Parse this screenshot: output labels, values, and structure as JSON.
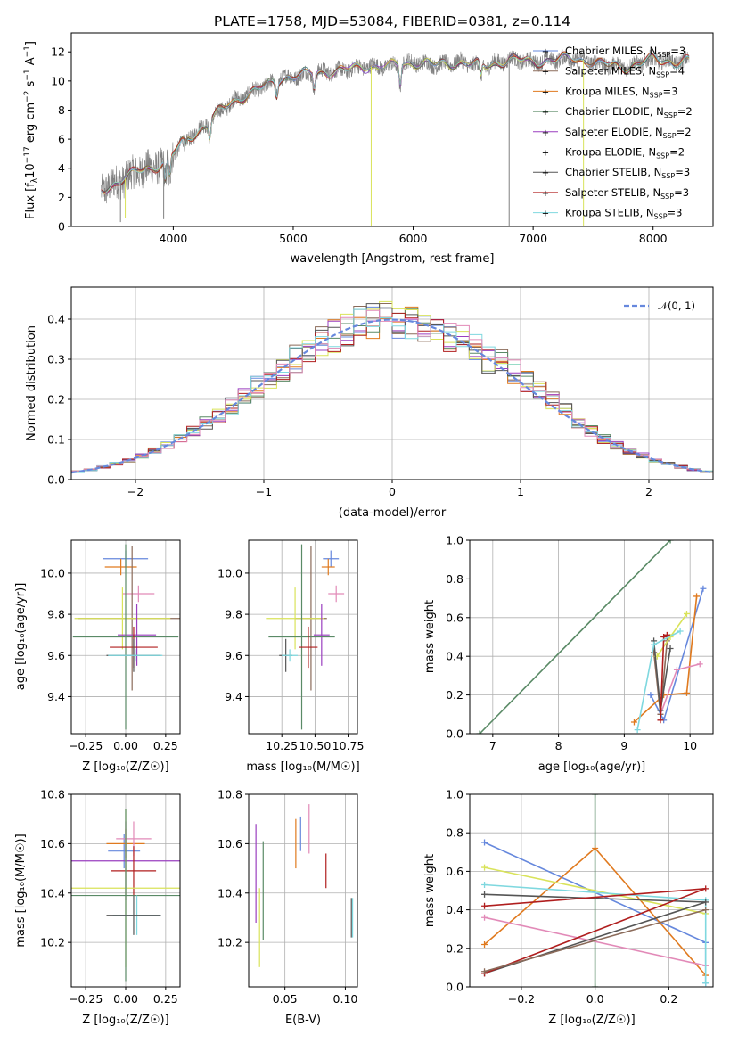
{
  "colors": {
    "Chabrier MILES": "#6688dd",
    "Salpeter MILES": "#8b6b5a",
    "Kroupa MILES": "#e07a1f",
    "Chabrier ELODIE": "#5a8a66",
    "Salpeter ELODIE": "#9a3fbf",
    "Kroupa ELODIE": "#d9e35a",
    "Chabrier STELIB": "#555555",
    "Salpeter STELIB": "#b01e1e",
    "Kroupa STELIB": "#7fd8df",
    "pink": "#e28ab8",
    "data": "#808080"
  },
  "chart_data": [
    {
      "id": "spectrum",
      "type": "line",
      "title": "PLATE=1758, MJD=53084, FIBERID=0381, z=0.114",
      "xlabel": "wavelength [Angstrom, rest frame]",
      "ylabel": "Flux [f_λ10^-17 erg cm^-2 s^-1 A^-1]",
      "xlim": [
        3150,
        8500
      ],
      "ylim": [
        0,
        13.3
      ],
      "xticks": [
        "4000",
        "5000",
        "6000",
        "7000",
        "8000"
      ],
      "yticks": [
        "0",
        "2",
        "4",
        "6",
        "8",
        "10",
        "12"
      ],
      "grid": false,
      "legend_position": "right",
      "legend": [
        {
          "label": "Chabrier MILES",
          "nssp": "3"
        },
        {
          "label": "Salpeter MILES",
          "nssp": "4"
        },
        {
          "label": "Kroupa MILES",
          "nssp": "3"
        },
        {
          "label": "Chabrier ELODIE",
          "nssp": "2"
        },
        {
          "label": "Salpeter ELODIE",
          "nssp": "2"
        },
        {
          "label": "Kroupa ELODIE",
          "nssp": "2"
        },
        {
          "label": "Chabrier STELIB",
          "nssp": "3"
        },
        {
          "label": "Salpeter STELIB",
          "nssp": "3"
        },
        {
          "label": "Kroupa STELIB",
          "nssp": "3"
        }
      ],
      "continuum": {
        "x": [
          3400,
          3500,
          3600,
          3700,
          3800,
          3900,
          4000,
          4100,
          4200,
          4300,
          4400,
          4500,
          4600,
          4700,
          4800,
          4900,
          5000,
          5200,
          5400,
          5600,
          5800,
          6000,
          6200,
          6400,
          6600,
          6800,
          7000,
          7200,
          7400,
          7600,
          7800,
          8000,
          8200,
          8300
        ],
        "y": [
          2.5,
          2.9,
          3.3,
          3.8,
          4.0,
          4.3,
          5.0,
          6.0,
          6.5,
          7.2,
          8.0,
          8.6,
          9.0,
          9.4,
          9.8,
          10.2,
          10.3,
          10.6,
          10.7,
          11.0,
          11.0,
          11.3,
          11.1,
          11.3,
          11.0,
          11.5,
          11.3,
          11.5,
          11.5,
          11.1,
          11.0,
          11.5,
          11.3,
          11.4
        ]
      }
    },
    {
      "id": "residuals",
      "type": "step",
      "xlabel": "(data-model)/error",
      "ylabel": "Normed distribution",
      "xlim": [
        -2.5,
        2.5
      ],
      "ylim": [
        0,
        0.48
      ],
      "xticks": [
        "−2",
        "−1",
        "0",
        "1",
        "2"
      ],
      "yticks": [
        "0.0",
        "0.1",
        "0.2",
        "0.3",
        "0.4"
      ],
      "grid": true,
      "legend_position": "top-right",
      "curve_label": "𝒩(0, 1)",
      "bin_width": 0.1
    },
    {
      "id": "age_vs_Z",
      "type": "errorbar",
      "xlabel": "Z [log₁₀(Z/Z☉)]",
      "ylabel": "age  [log₁₀(age/yr)]",
      "xlim": [
        -0.34,
        0.34
      ],
      "ylim": [
        9.22,
        10.16
      ],
      "xticks": [
        "−0.25",
        "0.00",
        "0.25"
      ],
      "yticks": [
        "9.4",
        "9.6",
        "9.8",
        "10.0"
      ],
      "grid": true,
      "points": [
        {
          "model": "Chabrier MILES",
          "x": 0.0,
          "xerr": 0.14,
          "y": 10.07,
          "yerr": 0.04
        },
        {
          "model": "Kroupa MILES",
          "x": -0.03,
          "xerr": 0.1,
          "y": 10.03,
          "yerr": 0.04
        },
        {
          "model": "pink",
          "x": 0.08,
          "xerr": 0.1,
          "y": 9.9,
          "yerr": 0.04
        },
        {
          "model": "Salpeter MILES",
          "x": 0.04,
          "xerr": 0.34,
          "y": 9.78,
          "yerr": 0.35
        },
        {
          "model": "Kroupa ELODIE",
          "x": -0.02,
          "xerr": 0.3,
          "y": 9.78,
          "yerr": 0.15
        },
        {
          "model": "Salpeter ELODIE",
          "x": 0.07,
          "xerr": 0.12,
          "y": 9.7,
          "yerr": 0.15
        },
        {
          "model": "Chabrier ELODIE",
          "x": 0.0,
          "xerr": 0.33,
          "y": 9.69,
          "yerr": 0.45
        },
        {
          "model": "Salpeter STELIB",
          "x": 0.05,
          "xerr": 0.15,
          "y": 9.64,
          "yerr": 0.1
        },
        {
          "model": "Chabrier STELIB",
          "x": 0.05,
          "xerr": 0.17,
          "y": 9.6,
          "yerr": 0.08
        },
        {
          "model": "Kroupa STELIB",
          "x": 0.06,
          "xerr": 0.17,
          "y": 9.6,
          "yerr": 0.03
        }
      ]
    },
    {
      "id": "age_vs_mass",
      "type": "errorbar",
      "xlabel": "mass [log₁₀(M/M☉)]",
      "xlim": [
        10.0,
        10.82
      ],
      "ylim": [
        9.22,
        10.16
      ],
      "xticks": [
        "10.25",
        "10.50",
        "10.75"
      ],
      "yticks": [
        "9.4",
        "9.6",
        "9.8",
        "10.0"
      ],
      "grid": true,
      "points": [
        {
          "model": "Chabrier MILES",
          "x": 10.62,
          "xerr": 0.06,
          "y": 10.07,
          "yerr": 0.04
        },
        {
          "model": "Kroupa MILES",
          "x": 10.6,
          "xerr": 0.05,
          "y": 10.03,
          "yerr": 0.04
        },
        {
          "model": "pink",
          "x": 10.66,
          "xerr": 0.06,
          "y": 9.9,
          "yerr": 0.04
        },
        {
          "model": "Salpeter MILES",
          "x": 10.47,
          "xerr": 0.12,
          "y": 9.78,
          "yerr": 0.35
        },
        {
          "model": "Kroupa ELODIE",
          "x": 10.35,
          "xerr": 0.22,
          "y": 9.78,
          "yerr": 0.15
        },
        {
          "model": "Salpeter ELODIE",
          "x": 10.55,
          "xerr": 0.06,
          "y": 9.7,
          "yerr": 0.15
        },
        {
          "model": "Chabrier ELODIE",
          "x": 10.4,
          "xerr": 0.25,
          "y": 9.69,
          "yerr": 0.45
        },
        {
          "model": "Salpeter STELIB",
          "x": 10.45,
          "xerr": 0.07,
          "y": 9.64,
          "yerr": 0.1
        },
        {
          "model": "Chabrier STELIB",
          "x": 10.28,
          "xerr": 0.05,
          "y": 9.6,
          "yerr": 0.08
        },
        {
          "model": "Kroupa STELIB",
          "x": 10.31,
          "xerr": 0.06,
          "y": 9.6,
          "yerr": 0.03
        }
      ]
    },
    {
      "id": "weight_vs_age",
      "type": "line",
      "xlabel": "age  [log₁₀(age/yr)]",
      "ylabel": "mass weight",
      "xlim": [
        6.65,
        10.35
      ],
      "ylim": [
        0,
        1
      ],
      "xticks": [
        "7",
        "8",
        "9",
        "10"
      ],
      "yticks": [
        "0.0",
        "0.2",
        "0.4",
        "0.6",
        "0.8",
        "1.0"
      ],
      "grid": true,
      "series": [
        {
          "model": "Chabrier ELODIE",
          "x": [
            6.8,
            9.7
          ],
          "y": [
            0.0,
            1.0
          ]
        },
        {
          "model": "Chabrier MILES",
          "x": [
            9.4,
            9.6,
            10.2
          ],
          "y": [
            0.2,
            0.07,
            0.75
          ]
        },
        {
          "model": "Kroupa MILES",
          "x": [
            9.15,
            9.6,
            9.95,
            10.1
          ],
          "y": [
            0.06,
            0.2,
            0.21,
            0.71
          ]
        },
        {
          "model": "pink",
          "x": [
            9.55,
            9.8,
            10.15
          ],
          "y": [
            0.1,
            0.33,
            0.36
          ]
        },
        {
          "model": "Salpeter MILES",
          "x": [
            9.45,
            9.55,
            9.65
          ],
          "y": [
            0.42,
            0.1,
            0.48
          ]
        },
        {
          "model": "Kroupa ELODIE",
          "x": [
            9.5,
            9.7,
            9.95
          ],
          "y": [
            0.4,
            0.5,
            0.62
          ]
        },
        {
          "model": "Chabrier STELIB",
          "x": [
            9.45,
            9.55,
            9.7
          ],
          "y": [
            0.48,
            0.12,
            0.44
          ]
        },
        {
          "model": "Salpeter STELIB",
          "x": [
            9.55,
            9.6,
            9.65
          ],
          "y": [
            0.07,
            0.5,
            0.51
          ]
        },
        {
          "model": "Kroupa STELIB",
          "x": [
            9.2,
            9.45,
            9.85
          ],
          "y": [
            0.02,
            0.46,
            0.53
          ]
        }
      ]
    },
    {
      "id": "mass_vs_Z",
      "type": "errorbar",
      "xlabel": "Z [log₁₀(Z/Z☉)]",
      "ylabel": "mass [log₁₀(M/M☉)]",
      "xlim": [
        -0.34,
        0.34
      ],
      "ylim": [
        10.02,
        10.8
      ],
      "xticks": [
        "−0.25",
        "0.00",
        "0.25"
      ],
      "yticks": [
        "10.2",
        "10.4",
        "10.6",
        "10.8"
      ],
      "grid": true,
      "points": [
        {
          "model": "Chabrier MILES",
          "x": -0.01,
          "xerr": 0.1,
          "y": 10.57,
          "yerr": 0.07
        },
        {
          "model": "Kroupa MILES",
          "x": 0.0,
          "xerr": 0.12,
          "y": 10.6,
          "yerr": 0.06
        },
        {
          "model": "pink",
          "x": 0.05,
          "xerr": 0.11,
          "y": 10.62,
          "yerr": 0.07
        },
        {
          "model": "Salpeter ELODIE",
          "x": 0.0,
          "xerr": 0.34,
          "y": 10.53,
          "yerr": 0.16
        },
        {
          "model": "Salpeter STELIB",
          "x": 0.05,
          "xerr": 0.14,
          "y": 10.49,
          "yerr": 0.1
        },
        {
          "model": "Kroupa ELODIE",
          "x": 0.0,
          "xerr": 0.34,
          "y": 10.42,
          "yerr": 0.32
        },
        {
          "model": "Chabrier ELODIE",
          "x": 0.0,
          "xerr": 0.34,
          "y": 10.39,
          "yerr": 0.35
        },
        {
          "model": "Kroupa STELIB",
          "x": 0.07,
          "xerr": 0.15,
          "y": 10.31,
          "yerr": 0.08
        },
        {
          "model": "Chabrier STELIB",
          "x": 0.05,
          "xerr": 0.17,
          "y": 10.31,
          "yerr": 0.08
        }
      ]
    },
    {
      "id": "mass_vs_ebv",
      "type": "errorbar",
      "xlabel": "E(B-V)",
      "xlim": [
        0.02,
        0.11
      ],
      "ylim": [
        10.02,
        10.8
      ],
      "xticks": [
        "0.05",
        "0.10"
      ],
      "yticks": [
        "10.2",
        "10.4",
        "10.6",
        "10.8"
      ],
      "grid": true,
      "points": [
        {
          "model": "Salpeter ELODIE",
          "x": 0.026,
          "yerr": 0.2,
          "y": 10.48
        },
        {
          "model": "Kroupa ELODIE",
          "x": 0.029,
          "yerr": 0.16,
          "y": 10.26
        },
        {
          "model": "Chabrier ELODIE",
          "x": 0.032,
          "yerr": 0.2,
          "y": 10.41
        },
        {
          "model": "Kroupa MILES",
          "x": 0.059,
          "yerr": 0.1,
          "y": 10.6
        },
        {
          "model": "Chabrier MILES",
          "x": 0.063,
          "yerr": 0.07,
          "y": 10.64
        },
        {
          "model": "pink",
          "x": 0.07,
          "yerr": 0.1,
          "y": 10.66
        },
        {
          "model": "Salpeter STELIB",
          "x": 0.084,
          "yerr": 0.07,
          "y": 10.49
        },
        {
          "model": "Chabrier STELIB",
          "x": 0.105,
          "yerr": 0.08,
          "y": 10.3
        },
        {
          "model": "Kroupa STELIB",
          "x": 0.106,
          "yerr": 0.08,
          "y": 10.3
        }
      ]
    },
    {
      "id": "weight_vs_Z",
      "type": "line",
      "xlabel": "Z [log₁₀(Z/Z☉)]",
      "ylabel": "mass weight",
      "xlim": [
        -0.34,
        0.32
      ],
      "ylim": [
        0,
        1
      ],
      "xticks": [
        "−0.2",
        "0.0",
        "0.2"
      ],
      "yticks": [
        "0.0",
        "0.2",
        "0.4",
        "0.6",
        "0.8",
        "1.0"
      ],
      "grid": true,
      "series": [
        {
          "model": "Chabrier ELODIE",
          "x": [
            0.0,
            0.0
          ],
          "y": [
            0.0,
            1.0
          ]
        },
        {
          "model": "Chabrier MILES",
          "x": [
            -0.3,
            0.3,
            0.3
          ],
          "y": [
            0.75,
            0.23,
            0.02
          ]
        },
        {
          "model": "Kroupa MILES",
          "x": [
            -0.3,
            0.0,
            0.3
          ],
          "y": [
            0.22,
            0.72,
            0.06
          ]
        },
        {
          "model": "pink",
          "x": [
            -0.3,
            0.3
          ],
          "y": [
            0.36,
            0.11
          ]
        },
        {
          "model": "Kroupa ELODIE",
          "x": [
            -0.3,
            0.3
          ],
          "y": [
            0.62,
            0.38
          ]
        },
        {
          "model": "Kroupa STELIB",
          "x": [
            -0.3,
            0.3,
            0.3
          ],
          "y": [
            0.53,
            0.45,
            0.02
          ]
        },
        {
          "model": "Chabrier STELIB",
          "x": [
            -0.3,
            0.3,
            -0.3
          ],
          "y": [
            0.07,
            0.44,
            0.48
          ]
        },
        {
          "model": "Salpeter STELIB",
          "x": [
            -0.3,
            0.3,
            -0.3
          ],
          "y": [
            0.07,
            0.51,
            0.42
          ]
        },
        {
          "model": "Salpeter MILES",
          "x": [
            -0.3,
            0.3
          ],
          "y": [
            0.08,
            0.4
          ]
        }
      ]
    }
  ]
}
